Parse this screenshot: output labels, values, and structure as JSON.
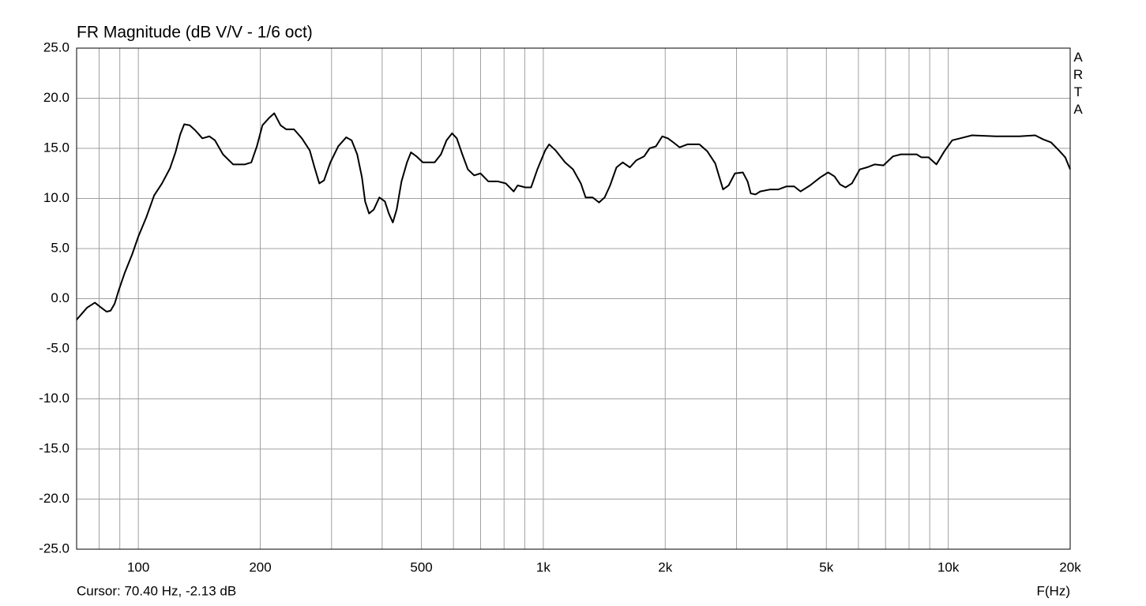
{
  "chart_data": {
    "type": "line",
    "title": "FR Magnitude (dB V/V - 1/6 oct)",
    "watermark": "ARTA",
    "cursor_text": "Cursor: 70.40 Hz, -2.13 dB",
    "x_label": "F(Hz)",
    "x_scale": "log",
    "grid": true,
    "xlim": [
      70.4,
      20000
    ],
    "ylim": [
      -25,
      25
    ],
    "xticks": [
      {
        "value": 80,
        "label": null
      },
      {
        "value": 90,
        "label": null
      },
      100,
      200,
      {
        "value": 300,
        "label": null
      },
      {
        "value": 400,
        "label": null
      },
      500,
      {
        "value": 600,
        "label": null
      },
      {
        "value": 700,
        "label": null
      },
      {
        "value": 800,
        "label": null
      },
      {
        "value": 900,
        "label": null
      },
      {
        "value": 1000,
        "label": "1k"
      },
      {
        "value": 2000,
        "label": "2k"
      },
      {
        "value": 3000,
        "label": null
      },
      {
        "value": 4000,
        "label": null
      },
      {
        "value": 5000,
        "label": "5k"
      },
      {
        "value": 6000,
        "label": null
      },
      {
        "value": 7000,
        "label": null
      },
      {
        "value": 8000,
        "label": null
      },
      {
        "value": 9000,
        "label": null
      },
      {
        "value": 10000,
        "label": "10k"
      },
      {
        "value": 20000,
        "label": "20k"
      }
    ],
    "yticks": [
      {
        "value": 25,
        "label": "25.0"
      },
      {
        "value": 20,
        "label": "20.0"
      },
      {
        "value": 15,
        "label": "15.0"
      },
      {
        "value": 10,
        "label": "10.0"
      },
      {
        "value": 5,
        "label": "5.0"
      },
      {
        "value": 0,
        "label": "0.0"
      },
      {
        "value": -5,
        "label": "-5.0"
      },
      {
        "value": -10,
        "label": "-10.0"
      },
      {
        "value": -15,
        "label": "-15.0"
      },
      {
        "value": -20,
        "label": "-20.0"
      },
      {
        "value": -25,
        "label": "-25.0"
      }
    ],
    "x": [
      70.4,
      74.7,
      78.1,
      81.0,
      83.5,
      85.4,
      87.4,
      89.4,
      92.6,
      96.5,
      100,
      104.6,
      109.4,
      114.4,
      119.7,
      123.5,
      126.9,
      129.8,
      133.9,
      138.2,
      143.9,
      149.8,
      154.6,
      161.8,
      171.4,
      183.4,
      190.1,
      196.2,
      202.5,
      209.9,
      216.6,
      224.5,
      231.7,
      242.3,
      253.4,
      265.0,
      272.3,
      279.8,
      287.4,
      298.0,
      311.6,
      326.0,
      336.3,
      347.1,
      356.6,
      363.1,
      371.3,
      381.5,
      393.7,
      406.3,
      415.5,
      425.0,
      434.5,
      446.5,
      460.7,
      471.2,
      486.2,
      504.0,
      539.1,
      558.8,
      576.8,
      595.2,
      611.5,
      631.0,
      651.2,
      675.0,
      699.7,
      731.8,
      772.3,
      807.8,
      845.0,
      864.2,
      903.9,
      932.8,
      966.8,
      1011,
      1034,
      1072,
      1132,
      1184,
      1238,
      1272,
      1324,
      1373,
      1417,
      1462,
      1516,
      1571,
      1636,
      1696,
      1774,
      1830,
      1897,
      1967,
      2030,
      2094,
      2171,
      2270,
      2429,
      2541,
      2658,
      2779,
      2868,
      2973,
      3110,
      3195,
      3253,
      3342,
      3433,
      3639,
      3806,
      3981,
      4164,
      4317,
      4556,
      4830,
      5051,
      5236,
      5404,
      5577,
      5781,
      6047,
      6295,
      6585,
      6918,
      7302,
      7636,
      7988,
      8356,
      8584,
      8939,
      9348,
      9777,
      10226,
      10698,
      11443,
      13097,
      14986,
      16392,
      17143,
      17934,
      18759,
      19447,
      20000
    ],
    "series": [
      {
        "name": "FR Magnitude",
        "color": "#000000",
        "values": [
          -2.1,
          -0.9,
          -0.4,
          -0.9,
          -1.3,
          -1.2,
          -0.5,
          0.8,
          2.6,
          4.4,
          6.2,
          8.1,
          10.3,
          11.5,
          13.0,
          14.6,
          16.4,
          17.4,
          17.3,
          16.8,
          16.0,
          16.2,
          15.8,
          14.4,
          13.4,
          13.4,
          13.6,
          15.2,
          17.3,
          18.0,
          18.5,
          17.3,
          16.9,
          16.9,
          16.0,
          14.8,
          13.1,
          11.5,
          11.8,
          13.6,
          15.2,
          16.1,
          15.8,
          14.4,
          12.1,
          9.7,
          8.5,
          8.9,
          10.1,
          9.7,
          8.5,
          7.6,
          8.9,
          11.7,
          13.6,
          14.6,
          14.2,
          13.6,
          13.6,
          14.4,
          15.8,
          16.5,
          16.0,
          14.4,
          12.9,
          12.3,
          12.5,
          11.7,
          11.7,
          11.5,
          10.7,
          11.3,
          11.1,
          11.1,
          12.9,
          14.8,
          15.4,
          14.8,
          13.6,
          12.9,
          11.5,
          10.1,
          10.1,
          9.6,
          10.1,
          11.3,
          13.1,
          13.6,
          13.1,
          13.8,
          14.2,
          15.0,
          15.2,
          16.2,
          16.0,
          15.6,
          15.1,
          15.4,
          15.4,
          14.7,
          13.5,
          10.9,
          11.3,
          12.5,
          12.6,
          11.7,
          10.5,
          10.4,
          10.7,
          10.9,
          10.9,
          11.2,
          11.2,
          10.7,
          11.3,
          12.1,
          12.6,
          12.2,
          11.4,
          11.1,
          11.5,
          12.9,
          13.1,
          13.4,
          13.3,
          14.2,
          14.4,
          14.4,
          14.4,
          14.1,
          14.1,
          13.4,
          14.7,
          15.8,
          16.0,
          16.3,
          16.2,
          16.2,
          16.3,
          15.9,
          15.6,
          14.8,
          14.1,
          12.9
        ]
      }
    ]
  }
}
